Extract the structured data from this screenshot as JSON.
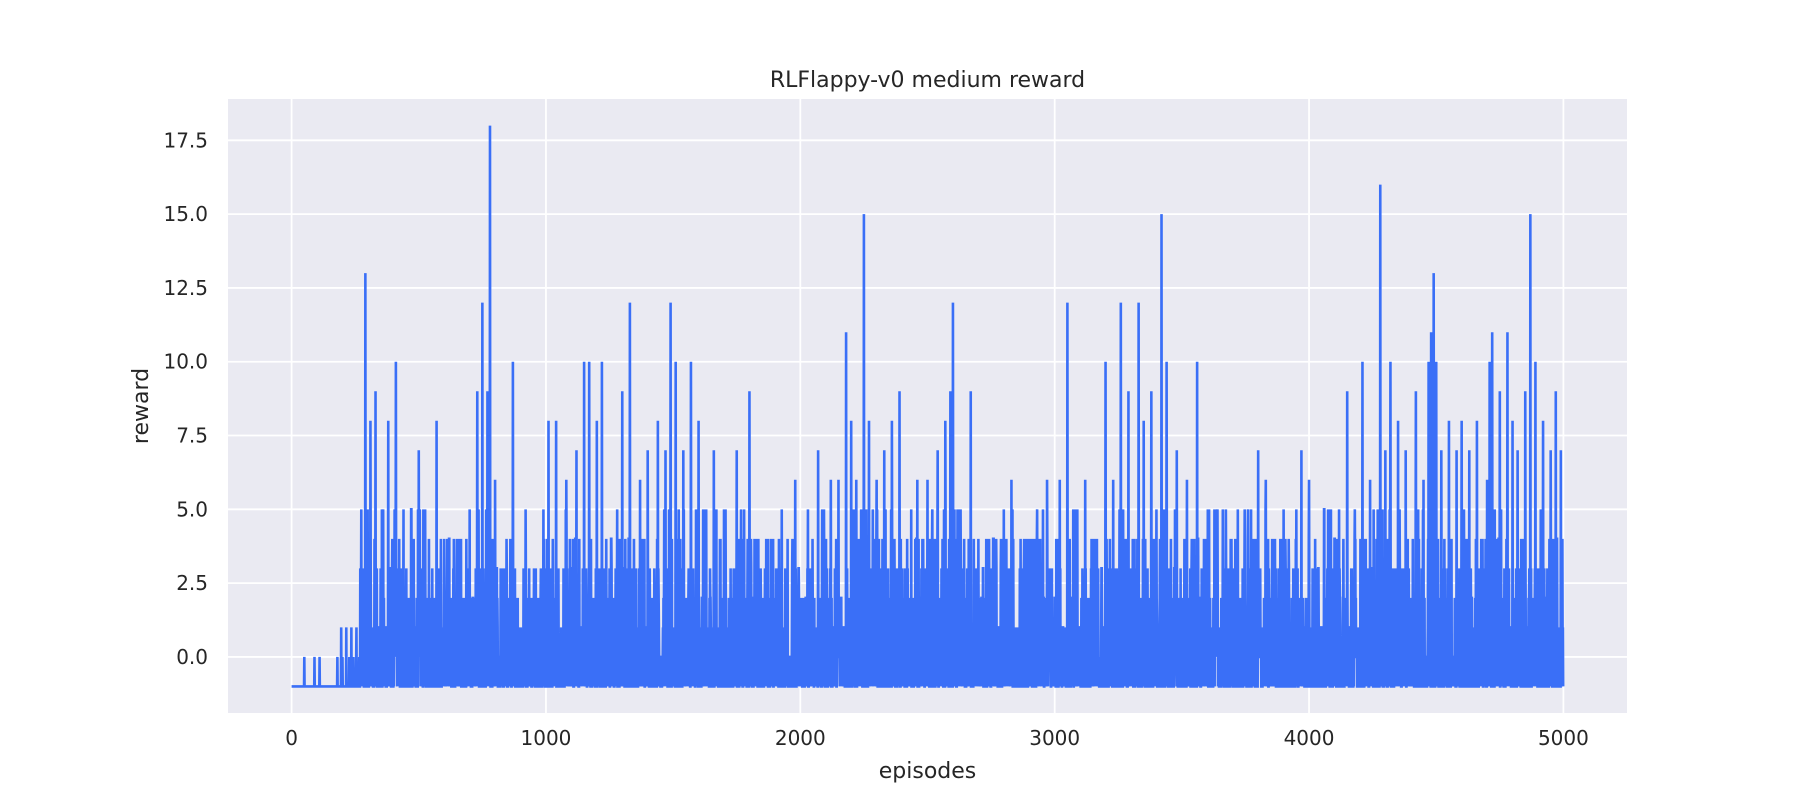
{
  "chart_data": {
    "type": "line",
    "title": "RLFlappy-v0 medium reward",
    "xlabel": "episodes",
    "ylabel": "reward",
    "xlim": [
      -250,
      5250
    ],
    "ylim": [
      -1.9,
      18.9
    ],
    "xticks": [
      0,
      1000,
      2000,
      3000,
      4000,
      5000
    ],
    "xtick_labels": [
      "0",
      "1000",
      "2000",
      "3000",
      "4000",
      "5000"
    ],
    "yticks": [
      0.0,
      2.5,
      5.0,
      7.5,
      10.0,
      12.5,
      15.0,
      17.5
    ],
    "ytick_labels": [
      "0.0",
      "2.5",
      "5.0",
      "7.5",
      "10.0",
      "12.5",
      "15.0",
      "17.5"
    ],
    "grid": true,
    "legend": "none",
    "background": "#eaeaf2",
    "line_color": "#3a6ff7",
    "series": [
      {
        "x_start": 0,
        "x_end": 4999,
        "baseline": -1,
        "n_episodes": 5000,
        "peaks": [
          [
            50,
            0
          ],
          [
            90,
            0
          ],
          [
            110,
            0
          ],
          [
            180,
            0
          ],
          [
            195,
            1
          ],
          [
            215,
            1
          ],
          [
            235,
            1
          ],
          [
            255,
            1
          ],
          [
            270,
            3
          ],
          [
            290,
            13
          ],
          [
            310,
            8
          ],
          [
            330,
            9
          ],
          [
            360,
            5
          ],
          [
            380,
            8
          ],
          [
            410,
            10
          ],
          [
            440,
            5
          ],
          [
            470,
            5
          ],
          [
            500,
            7
          ],
          [
            540,
            4
          ],
          [
            570,
            8
          ],
          [
            600,
            4
          ],
          [
            650,
            4
          ],
          [
            700,
            5
          ],
          [
            730,
            9
          ],
          [
            750,
            12
          ],
          [
            770,
            9
          ],
          [
            780,
            18
          ],
          [
            800,
            6
          ],
          [
            840,
            3
          ],
          [
            870,
            10
          ],
          [
            920,
            5
          ],
          [
            960,
            3
          ],
          [
            990,
            5
          ],
          [
            1010,
            8
          ],
          [
            1040,
            8
          ],
          [
            1080,
            6
          ],
          [
            1120,
            7
          ],
          [
            1150,
            10
          ],
          [
            1170,
            10
          ],
          [
            1200,
            8
          ],
          [
            1220,
            10
          ],
          [
            1250,
            3
          ],
          [
            1280,
            5
          ],
          [
            1300,
            9
          ],
          [
            1330,
            12
          ],
          [
            1370,
            6
          ],
          [
            1400,
            7
          ],
          [
            1440,
            8
          ],
          [
            1470,
            7
          ],
          [
            1490,
            12
          ],
          [
            1510,
            10
          ],
          [
            1540,
            7
          ],
          [
            1570,
            10
          ],
          [
            1600,
            8
          ],
          [
            1630,
            5
          ],
          [
            1660,
            7
          ],
          [
            1700,
            5
          ],
          [
            1750,
            7
          ],
          [
            1800,
            9
          ],
          [
            1820,
            4
          ],
          [
            1870,
            3
          ],
          [
            1900,
            2
          ],
          [
            1950,
            4
          ],
          [
            1980,
            6
          ],
          [
            2030,
            5
          ],
          [
            2070,
            7
          ],
          [
            2120,
            6
          ],
          [
            2150,
            6
          ],
          [
            2180,
            11
          ],
          [
            2200,
            8
          ],
          [
            2220,
            6
          ],
          [
            2250,
            15
          ],
          [
            2270,
            8
          ],
          [
            2300,
            6
          ],
          [
            2330,
            7
          ],
          [
            2360,
            8
          ],
          [
            2390,
            9
          ],
          [
            2420,
            4
          ],
          [
            2460,
            6
          ],
          [
            2500,
            6
          ],
          [
            2540,
            7
          ],
          [
            2570,
            8
          ],
          [
            2590,
            9
          ],
          [
            2600,
            12
          ],
          [
            2630,
            5
          ],
          [
            2670,
            9
          ],
          [
            2700,
            4
          ],
          [
            2760,
            4
          ],
          [
            2800,
            5
          ],
          [
            2830,
            6
          ],
          [
            2880,
            4
          ],
          [
            2930,
            4
          ],
          [
            2970,
            6
          ],
          [
            3020,
            6
          ],
          [
            3050,
            12
          ],
          [
            3080,
            5
          ],
          [
            3120,
            6
          ],
          [
            3160,
            4
          ],
          [
            3200,
            10
          ],
          [
            3230,
            6
          ],
          [
            3260,
            12
          ],
          [
            3290,
            9
          ],
          [
            3330,
            12
          ],
          [
            3350,
            8
          ],
          [
            3380,
            9
          ],
          [
            3400,
            5
          ],
          [
            3420,
            15
          ],
          [
            3440,
            10
          ],
          [
            3480,
            7
          ],
          [
            3520,
            6
          ],
          [
            3560,
            10
          ],
          [
            3600,
            4
          ],
          [
            3640,
            5
          ],
          [
            3680,
            3
          ],
          [
            3720,
            5
          ],
          [
            3760,
            5
          ],
          [
            3800,
            7
          ],
          [
            3830,
            6
          ],
          [
            3860,
            4
          ],
          [
            3900,
            5
          ],
          [
            3950,
            5
          ],
          [
            3970,
            7
          ],
          [
            4000,
            6
          ],
          [
            4060,
            5
          ],
          [
            4100,
            4
          ],
          [
            4150,
            9
          ],
          [
            4180,
            5
          ],
          [
            4210,
            10
          ],
          [
            4240,
            6
          ],
          [
            4270,
            5
          ],
          [
            4280,
            16
          ],
          [
            4300,
            7
          ],
          [
            4320,
            10
          ],
          [
            4350,
            8
          ],
          [
            4380,
            7
          ],
          [
            4420,
            9
          ],
          [
            4450,
            6
          ],
          [
            4470,
            10
          ],
          [
            4480,
            11
          ],
          [
            4490,
            13
          ],
          [
            4500,
            10
          ],
          [
            4520,
            7
          ],
          [
            4550,
            8
          ],
          [
            4580,
            7
          ],
          [
            4600,
            8
          ],
          [
            4630,
            7
          ],
          [
            4660,
            8
          ],
          [
            4700,
            6
          ],
          [
            4710,
            10
          ],
          [
            4720,
            11
          ],
          [
            4750,
            9
          ],
          [
            4780,
            11
          ],
          [
            4800,
            8
          ],
          [
            4820,
            7
          ],
          [
            4850,
            9
          ],
          [
            4870,
            15
          ],
          [
            4890,
            10
          ],
          [
            4920,
            8
          ],
          [
            4950,
            7
          ],
          [
            4970,
            9
          ],
          [
            4990,
            7
          ]
        ]
      }
    ]
  }
}
